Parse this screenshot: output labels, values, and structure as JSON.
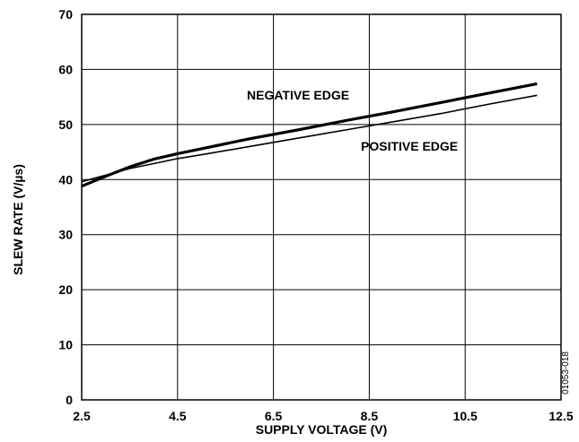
{
  "chart_data": {
    "type": "line",
    "xlabel": "SUPPLY VOLTAGE (V)",
    "ylabel": "SLEW RATE (V/µs)",
    "xlim": [
      2.5,
      12.5
    ],
    "ylim": [
      0,
      70
    ],
    "xticks": [
      "2.5",
      "4.5",
      "6.5",
      "8.5",
      "10.5",
      "12.5"
    ],
    "yticks": [
      "0",
      "10",
      "20",
      "30",
      "40",
      "50",
      "60",
      "70"
    ],
    "grid": true,
    "series": [
      {
        "name": "NEGATIVE EDGE",
        "x": [
          2.5,
          3.0,
          3.5,
          4.0,
          4.5,
          5.0,
          6.0,
          7.0,
          8.0,
          9.0,
          10.0,
          11.0,
          12.0
        ],
        "y": [
          38.8,
          40.6,
          42.3,
          43.7,
          44.7,
          45.6,
          47.4,
          49.0,
          50.7,
          52.3,
          54.0,
          55.7,
          57.4
        ]
      },
      {
        "name": "POSITIVE EDGE",
        "x": [
          2.5,
          3.0,
          3.5,
          4.0,
          4.5,
          5.0,
          6.0,
          7.0,
          8.0,
          9.0,
          10.0,
          11.0,
          12.0
        ],
        "y": [
          39.6,
          40.8,
          42.0,
          42.9,
          43.8,
          44.5,
          46.0,
          47.5,
          49.0,
          50.5,
          52.0,
          53.7,
          55.3
        ]
      }
    ],
    "annotations": [
      "NEGATIVE EDGE",
      "POSITIVE EDGE"
    ],
    "figure_id": "01053-018"
  }
}
